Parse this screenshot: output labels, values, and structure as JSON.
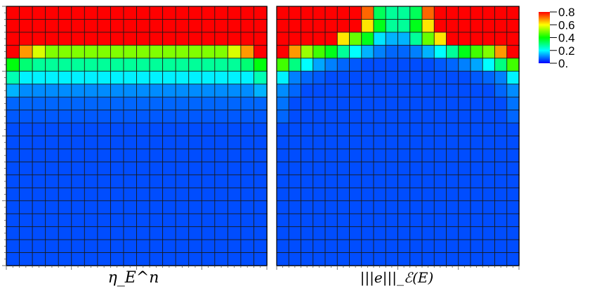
{
  "chart_data": [
    {
      "type": "heatmap",
      "xlabel": "η_E^n",
      "rows": 20,
      "cols": 20,
      "values": [
        [
          0.9,
          0.9,
          0.9,
          0.9,
          0.9,
          0.9,
          0.9,
          0.9,
          0.9,
          0.9,
          0.9,
          0.9,
          0.9,
          0.9,
          0.9,
          0.9,
          0.9,
          0.9,
          0.9,
          0.9
        ],
        [
          0.9,
          0.9,
          0.9,
          0.9,
          0.9,
          0.9,
          0.9,
          0.9,
          0.9,
          0.9,
          0.9,
          0.9,
          0.9,
          0.9,
          0.9,
          0.9,
          0.9,
          0.9,
          0.9,
          0.9
        ],
        [
          0.9,
          0.9,
          0.9,
          0.9,
          0.9,
          0.9,
          0.9,
          0.9,
          0.9,
          0.9,
          0.9,
          0.9,
          0.9,
          0.9,
          0.9,
          0.9,
          0.9,
          0.9,
          0.9,
          0.9
        ],
        [
          0.83,
          0.68,
          0.57,
          0.5,
          0.5,
          0.5,
          0.5,
          0.5,
          0.5,
          0.5,
          0.5,
          0.5,
          0.5,
          0.5,
          0.5,
          0.5,
          0.5,
          0.57,
          0.68,
          0.83
        ],
        [
          0.39,
          0.31,
          0.28,
          0.28,
          0.28,
          0.28,
          0.28,
          0.28,
          0.28,
          0.28,
          0.28,
          0.28,
          0.28,
          0.28,
          0.28,
          0.28,
          0.28,
          0.28,
          0.31,
          0.39
        ],
        [
          0.26,
          0.19,
          0.19,
          0.19,
          0.19,
          0.19,
          0.19,
          0.19,
          0.19,
          0.19,
          0.19,
          0.19,
          0.19,
          0.19,
          0.19,
          0.19,
          0.19,
          0.19,
          0.19,
          0.26
        ],
        [
          0.14,
          0.11,
          0.11,
          0.11,
          0.11,
          0.11,
          0.11,
          0.11,
          0.11,
          0.11,
          0.11,
          0.11,
          0.11,
          0.11,
          0.11,
          0.11,
          0.11,
          0.11,
          0.11,
          0.14
        ],
        [
          0.08,
          0.08,
          0.08,
          0.08,
          0.08,
          0.08,
          0.08,
          0.08,
          0.08,
          0.08,
          0.08,
          0.08,
          0.08,
          0.08,
          0.08,
          0.08,
          0.08,
          0.08,
          0.08,
          0.08
        ],
        [
          0.07,
          0.07,
          0.07,
          0.07,
          0.07,
          0.07,
          0.07,
          0.07,
          0.07,
          0.07,
          0.07,
          0.07,
          0.07,
          0.07,
          0.07,
          0.07,
          0.07,
          0.07,
          0.07,
          0.07
        ],
        [
          0.06,
          0.06,
          0.06,
          0.06,
          0.06,
          0.06,
          0.06,
          0.06,
          0.06,
          0.06,
          0.06,
          0.06,
          0.06,
          0.06,
          0.06,
          0.06,
          0.06,
          0.06,
          0.06,
          0.06
        ],
        [
          0.06,
          0.06,
          0.06,
          0.06,
          0.06,
          0.06,
          0.06,
          0.06,
          0.06,
          0.06,
          0.06,
          0.06,
          0.06,
          0.06,
          0.06,
          0.06,
          0.06,
          0.06,
          0.06,
          0.06
        ],
        [
          0.06,
          0.06,
          0.06,
          0.06,
          0.06,
          0.06,
          0.06,
          0.06,
          0.06,
          0.06,
          0.06,
          0.06,
          0.06,
          0.06,
          0.06,
          0.06,
          0.06,
          0.06,
          0.06,
          0.06
        ],
        [
          0.06,
          0.06,
          0.06,
          0.06,
          0.06,
          0.06,
          0.06,
          0.06,
          0.06,
          0.06,
          0.06,
          0.06,
          0.06,
          0.06,
          0.06,
          0.06,
          0.06,
          0.06,
          0.06,
          0.06
        ],
        [
          0.06,
          0.06,
          0.06,
          0.06,
          0.06,
          0.06,
          0.06,
          0.06,
          0.06,
          0.06,
          0.06,
          0.06,
          0.06,
          0.06,
          0.06,
          0.06,
          0.06,
          0.06,
          0.06,
          0.06
        ],
        [
          0.06,
          0.06,
          0.06,
          0.06,
          0.06,
          0.06,
          0.06,
          0.06,
          0.06,
          0.06,
          0.06,
          0.06,
          0.06,
          0.06,
          0.06,
          0.06,
          0.06,
          0.06,
          0.06,
          0.06
        ],
        [
          0.06,
          0.06,
          0.06,
          0.06,
          0.06,
          0.06,
          0.06,
          0.06,
          0.06,
          0.06,
          0.06,
          0.06,
          0.06,
          0.06,
          0.06,
          0.06,
          0.06,
          0.06,
          0.06,
          0.06
        ],
        [
          0.06,
          0.06,
          0.06,
          0.06,
          0.06,
          0.06,
          0.06,
          0.06,
          0.06,
          0.06,
          0.06,
          0.06,
          0.06,
          0.06,
          0.06,
          0.06,
          0.06,
          0.06,
          0.06,
          0.06
        ],
        [
          0.06,
          0.06,
          0.06,
          0.06,
          0.06,
          0.06,
          0.06,
          0.06,
          0.06,
          0.06,
          0.06,
          0.06,
          0.06,
          0.06,
          0.06,
          0.06,
          0.06,
          0.06,
          0.06,
          0.06
        ],
        [
          0.06,
          0.06,
          0.06,
          0.06,
          0.06,
          0.06,
          0.06,
          0.06,
          0.06,
          0.06,
          0.06,
          0.06,
          0.06,
          0.06,
          0.06,
          0.06,
          0.06,
          0.06,
          0.06,
          0.06
        ],
        [
          0.06,
          0.06,
          0.06,
          0.06,
          0.06,
          0.06,
          0.06,
          0.06,
          0.06,
          0.06,
          0.06,
          0.06,
          0.06,
          0.06,
          0.06,
          0.06,
          0.06,
          0.06,
          0.06,
          0.06
        ]
      ]
    },
    {
      "type": "heatmap",
      "xlabel": "|||e|||_ℰ(E)",
      "rows": 20,
      "cols": 20,
      "values": [
        [
          0.9,
          0.9,
          0.9,
          0.9,
          0.9,
          0.9,
          0.9,
          0.72,
          0.33,
          0.28,
          0.28,
          0.33,
          0.72,
          0.9,
          0.9,
          0.9,
          0.9,
          0.9,
          0.9,
          0.9
        ],
        [
          0.9,
          0.9,
          0.9,
          0.9,
          0.9,
          0.9,
          0.9,
          0.62,
          0.38,
          0.28,
          0.28,
          0.38,
          0.62,
          0.9,
          0.9,
          0.9,
          0.9,
          0.9,
          0.9,
          0.9
        ],
        [
          0.9,
          0.9,
          0.9,
          0.9,
          0.9,
          0.62,
          0.48,
          0.38,
          0.18,
          0.14,
          0.14,
          0.28,
          0.48,
          0.62,
          0.9,
          0.9,
          0.9,
          0.9,
          0.9,
          0.9
        ],
        [
          0.9,
          0.68,
          0.52,
          0.45,
          0.38,
          0.28,
          0.2,
          0.14,
          0.1,
          0.08,
          0.08,
          0.1,
          0.14,
          0.2,
          0.28,
          0.38,
          0.45,
          0.5,
          0.68,
          0.9
        ],
        [
          0.45,
          0.3,
          0.2,
          0.13,
          0.1,
          0.08,
          0.07,
          0.06,
          0.06,
          0.06,
          0.06,
          0.06,
          0.06,
          0.07,
          0.08,
          0.1,
          0.13,
          0.2,
          0.3,
          0.45
        ],
        [
          0.19,
          0.1,
          0.08,
          0.07,
          0.06,
          0.06,
          0.06,
          0.06,
          0.06,
          0.06,
          0.06,
          0.06,
          0.06,
          0.06,
          0.06,
          0.06,
          0.07,
          0.08,
          0.1,
          0.19
        ],
        [
          0.11,
          0.08,
          0.06,
          0.06,
          0.06,
          0.06,
          0.06,
          0.06,
          0.06,
          0.06,
          0.06,
          0.06,
          0.06,
          0.06,
          0.06,
          0.06,
          0.06,
          0.06,
          0.08,
          0.11
        ],
        [
          0.09,
          0.06,
          0.06,
          0.06,
          0.06,
          0.06,
          0.06,
          0.06,
          0.06,
          0.06,
          0.06,
          0.06,
          0.06,
          0.06,
          0.06,
          0.06,
          0.06,
          0.06,
          0.06,
          0.09
        ],
        [
          0.08,
          0.06,
          0.06,
          0.06,
          0.06,
          0.06,
          0.06,
          0.06,
          0.06,
          0.06,
          0.06,
          0.06,
          0.06,
          0.06,
          0.06,
          0.06,
          0.06,
          0.06,
          0.06,
          0.08
        ],
        [
          0.06,
          0.06,
          0.06,
          0.06,
          0.06,
          0.06,
          0.06,
          0.06,
          0.06,
          0.06,
          0.06,
          0.06,
          0.06,
          0.06,
          0.06,
          0.06,
          0.06,
          0.06,
          0.06,
          0.06
        ],
        [
          0.06,
          0.06,
          0.06,
          0.06,
          0.06,
          0.06,
          0.06,
          0.06,
          0.06,
          0.06,
          0.06,
          0.06,
          0.06,
          0.06,
          0.06,
          0.06,
          0.06,
          0.06,
          0.06,
          0.06
        ],
        [
          0.06,
          0.06,
          0.06,
          0.06,
          0.06,
          0.06,
          0.06,
          0.06,
          0.06,
          0.06,
          0.06,
          0.06,
          0.06,
          0.06,
          0.06,
          0.06,
          0.06,
          0.06,
          0.06,
          0.06
        ],
        [
          0.06,
          0.06,
          0.06,
          0.06,
          0.06,
          0.06,
          0.06,
          0.06,
          0.06,
          0.06,
          0.06,
          0.06,
          0.06,
          0.06,
          0.06,
          0.06,
          0.06,
          0.06,
          0.06,
          0.06
        ],
        [
          0.06,
          0.06,
          0.06,
          0.06,
          0.06,
          0.06,
          0.06,
          0.06,
          0.06,
          0.06,
          0.06,
          0.06,
          0.06,
          0.06,
          0.06,
          0.06,
          0.06,
          0.06,
          0.06,
          0.06
        ],
        [
          0.06,
          0.06,
          0.06,
          0.06,
          0.06,
          0.06,
          0.06,
          0.06,
          0.06,
          0.06,
          0.06,
          0.06,
          0.06,
          0.06,
          0.06,
          0.06,
          0.06,
          0.06,
          0.06,
          0.06
        ],
        [
          0.06,
          0.06,
          0.06,
          0.06,
          0.06,
          0.06,
          0.06,
          0.06,
          0.06,
          0.06,
          0.06,
          0.06,
          0.06,
          0.06,
          0.06,
          0.06,
          0.06,
          0.06,
          0.06,
          0.06
        ],
        [
          0.06,
          0.06,
          0.06,
          0.06,
          0.06,
          0.06,
          0.06,
          0.06,
          0.06,
          0.06,
          0.06,
          0.06,
          0.06,
          0.06,
          0.06,
          0.06,
          0.06,
          0.06,
          0.06,
          0.06
        ],
        [
          0.06,
          0.06,
          0.06,
          0.06,
          0.06,
          0.06,
          0.06,
          0.06,
          0.06,
          0.06,
          0.06,
          0.06,
          0.06,
          0.06,
          0.06,
          0.06,
          0.06,
          0.06,
          0.06,
          0.06
        ],
        [
          0.06,
          0.06,
          0.06,
          0.06,
          0.06,
          0.06,
          0.06,
          0.06,
          0.06,
          0.06,
          0.06,
          0.06,
          0.06,
          0.06,
          0.06,
          0.06,
          0.06,
          0.06,
          0.06,
          0.06
        ],
        [
          0.06,
          0.06,
          0.06,
          0.06,
          0.06,
          0.06,
          0.06,
          0.06,
          0.06,
          0.06,
          0.06,
          0.06,
          0.06,
          0.06,
          0.06,
          0.06,
          0.06,
          0.06,
          0.06,
          0.06
        ]
      ]
    }
  ],
  "colorbar": {
    "range": [
      0,
      0.8
    ],
    "labels": [
      "0.8",
      "0.6",
      "0.4",
      "0.2",
      "0."
    ],
    "values": [
      0.8,
      0.6,
      0.4,
      0.2,
      0
    ],
    "colors": [
      "#0000ff",
      "#00ffff",
      "#00ff00",
      "#ffff00",
      "#ff0000"
    ]
  },
  "style": {
    "grid_color": "#1a1a1a",
    "frame_color": "#000000"
  }
}
